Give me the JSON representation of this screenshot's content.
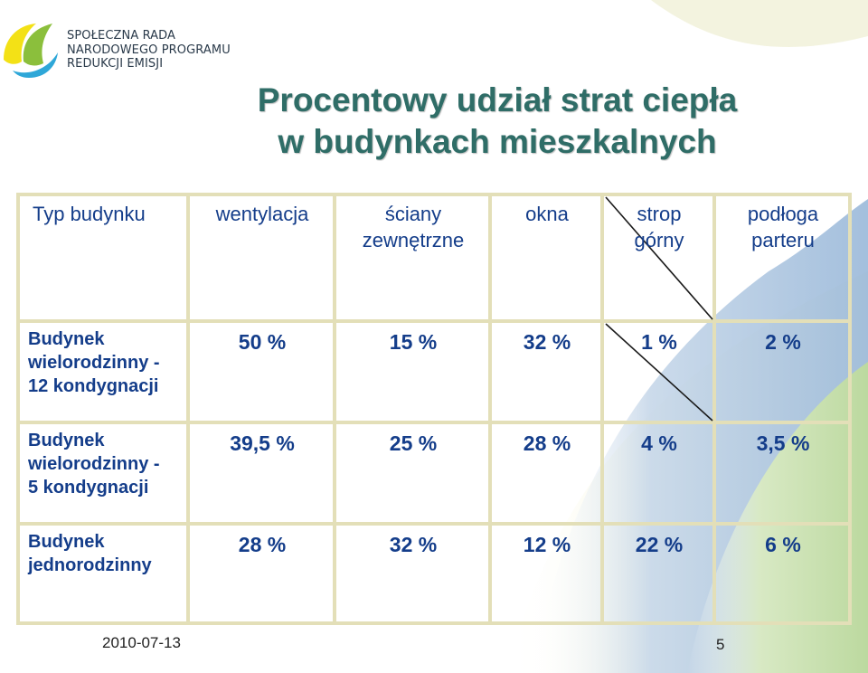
{
  "logo": {
    "lines": [
      "SPOŁECZNA RADA",
      "NARODOWEGO PROGRAMU",
      "REDUKCJI EMISJI"
    ],
    "colors": {
      "yellow": "#f3e116",
      "green": "#8bbf3c",
      "blue": "#2ea7d8"
    }
  },
  "title": {
    "line1": "Procentowy udział strat ciepła",
    "line2": "w budynkach mieszkalnych"
  },
  "table": {
    "headers": [
      "Typ budynku",
      "wentylacja",
      "ściany zewnętrzne",
      "okna",
      "strop górny",
      "podłoga parteru"
    ],
    "header_lines": {
      "scian1": "ściany",
      "scian2": "zewnętrzne",
      "strop1": "strop",
      "strop2": "górny",
      "podl1": "podłoga",
      "podl2": "parteru"
    },
    "rows": [
      {
        "label_lines": [
          "Budynek",
          "wielorodzinny -",
          "12 kondygnacji"
        ],
        "values": [
          "50 %",
          "15 %",
          "32 %",
          "1 %",
          "2 %"
        ]
      },
      {
        "label_lines": [
          "Budynek",
          "wielorodzinny -",
          "5 kondygnacji"
        ],
        "values": [
          "39,5 %",
          "25 %",
          "28 %",
          "4 %",
          "3,5 %"
        ]
      },
      {
        "label_lines": [
          "Budynek",
          "jednorodzinny"
        ],
        "values": [
          "28 %",
          "32 %",
          "12 %",
          "22 %",
          "6 %"
        ]
      }
    ]
  },
  "footer": {
    "date": "2010-07-13",
    "page": "5"
  },
  "colors": {
    "title": "#2f6d67",
    "text": "#143d8a",
    "grid": "#e6e2bd",
    "wave_blue": "#a9c2de",
    "wave_green": "#c7dfae",
    "wave_yellow": "#f1f1cf"
  }
}
